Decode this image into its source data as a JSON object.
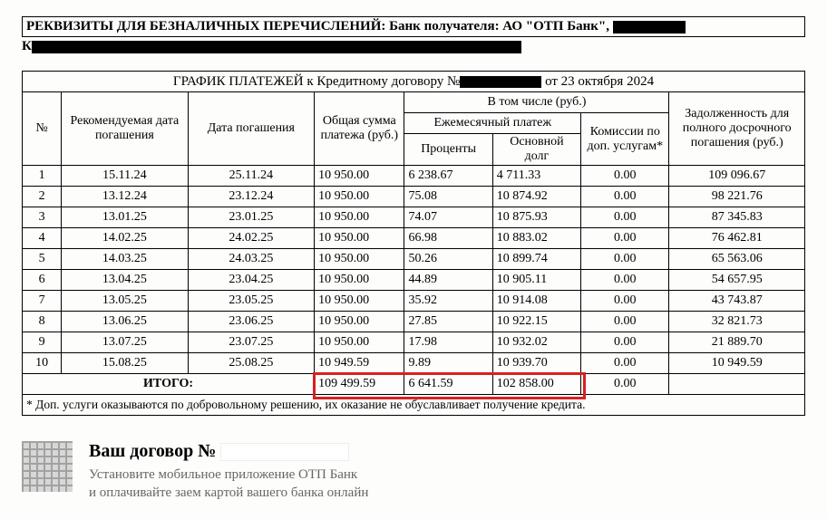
{
  "requisites_line1_prefix": "РЕКВИЗИТЫ ДЛЯ БЕЗНАЛИЧНЫХ ПЕРЕЧИСЛЕНИЙ: Банк получателя: АО \"ОТП Банк\", ",
  "requisites_line2_prefix": "К",
  "schedule_title_prefix": "ГРАФИК ПЛАТЕЖЕЙ к Кредитному договору №",
  "schedule_title_suffix": "от 23 октября 2024",
  "headers": {
    "num": "№",
    "rec_date": "Рекомендуемая дата погашения",
    "due_date": "Дата погашения",
    "total": "Общая сумма платежа (руб.)",
    "incl": "В том числе (руб.)",
    "monthly": "Ежемесячный платеж",
    "interest": "Проценты",
    "principal": "Основной долг",
    "commission": "Комиссии по доп. услугам*",
    "debt": "Задолженность для полного досрочного погашения (руб.)"
  },
  "rows": [
    {
      "n": "1",
      "rd": "15.11.24",
      "dd": "25.11.24",
      "sum": "10 950.00",
      "int": "6 238.67",
      "pri": "4 711.33",
      "com": "0.00",
      "deb": "109 096.67"
    },
    {
      "n": "2",
      "rd": "13.12.24",
      "dd": "23.12.24",
      "sum": "10 950.00",
      "int": "75.08",
      "pri": "10 874.92",
      "com": "0.00",
      "deb": "98 221.76"
    },
    {
      "n": "3",
      "rd": "13.01.25",
      "dd": "23.01.25",
      "sum": "10 950.00",
      "int": "74.07",
      "pri": "10 875.93",
      "com": "0.00",
      "deb": "87 345.83"
    },
    {
      "n": "4",
      "rd": "14.02.25",
      "dd": "24.02.25",
      "sum": "10 950.00",
      "int": "66.98",
      "pri": "10 883.02",
      "com": "0.00",
      "deb": "76 462.81"
    },
    {
      "n": "5",
      "rd": "14.03.25",
      "dd": "24.03.25",
      "sum": "10 950.00",
      "int": "50.26",
      "pri": "10 899.74",
      "com": "0.00",
      "deb": "65 563.06"
    },
    {
      "n": "6",
      "rd": "13.04.25",
      "dd": "23.04.25",
      "sum": "10 950.00",
      "int": "44.89",
      "pri": "10 905.11",
      "com": "0.00",
      "deb": "54 657.95"
    },
    {
      "n": "7",
      "rd": "13.05.25",
      "dd": "23.05.25",
      "sum": "10 950.00",
      "int": "35.92",
      "pri": "10 914.08",
      "com": "0.00",
      "deb": "43 743.87"
    },
    {
      "n": "8",
      "rd": "13.06.25",
      "dd": "23.06.25",
      "sum": "10 950.00",
      "int": "27.85",
      "pri": "10 922.15",
      "com": "0.00",
      "deb": "32 821.73"
    },
    {
      "n": "9",
      "rd": "13.07.25",
      "dd": "23.07.25",
      "sum": "10 950.00",
      "int": "17.98",
      "pri": "10 932.02",
      "com": "0.00",
      "deb": "21 889.70"
    },
    {
      "n": "10",
      "rd": "15.08.25",
      "dd": "25.08.25",
      "sum": "10 949.59",
      "int": "9.89",
      "pri": "10 939.70",
      "com": "0.00",
      "deb": "10 949.59"
    }
  ],
  "totals": {
    "label": "ИТОГО:",
    "sum": "109 499.59",
    "int": "6 641.59",
    "pri": "102 858.00",
    "com": "0.00",
    "deb": ""
  },
  "footnote": "* Доп. услуги оказываются по добровольному решению, их оказание не обуславливает получение кредита.",
  "promo": {
    "title_prefix": "Ваш договор № ",
    "line1": "Установите мобильное приложение ОТП Банк",
    "line2": "и оплачивайте заем картой вашего банка онлайн"
  },
  "highlight_color": "#d82020"
}
